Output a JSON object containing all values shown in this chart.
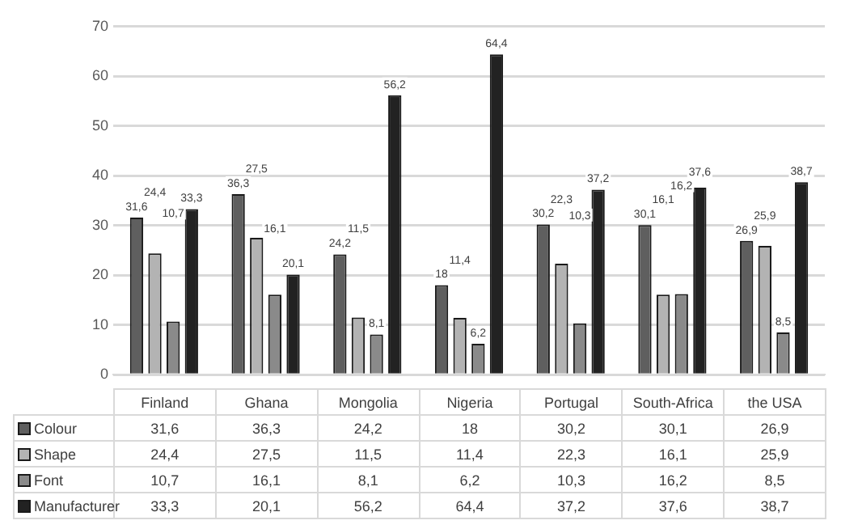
{
  "chart_data": {
    "type": "bar",
    "categories": [
      "Finland",
      "Ghana",
      "Mongolia",
      "Nigeria",
      "Portugal",
      "South-Africa",
      "the USA"
    ],
    "series": [
      {
        "name": "Colour",
        "color": "#5f5f5f",
        "values": [
          31.6,
          36.3,
          24.2,
          18,
          30.2,
          30.1,
          26.9
        ],
        "value_labels": [
          "31,6",
          "36,3",
          "24,2",
          "18",
          "30,2",
          "30,1",
          "26,9"
        ]
      },
      {
        "name": "Shape",
        "color": "#b3b3b3",
        "values": [
          24.4,
          27.5,
          11.5,
          11.4,
          22.3,
          16.1,
          25.9
        ],
        "value_labels": [
          "24,4",
          "27,5",
          "11,5",
          "11,4",
          "22,3",
          "16,1",
          "25,9"
        ]
      },
      {
        "name": "Font",
        "color": "#8a8a8a",
        "values": [
          10.7,
          16.1,
          8.1,
          6.2,
          10.3,
          16.2,
          8.5
        ],
        "value_labels": [
          "10,7",
          "16,1",
          "8,1",
          "6,2",
          "10,3",
          "16,2",
          "8,5"
        ]
      },
      {
        "name": "Manufacturer",
        "color": "#222222",
        "values": [
          33.3,
          20.1,
          56.2,
          64.4,
          37.2,
          37.6,
          38.7
        ],
        "value_labels": [
          "33,3",
          "20,1",
          "56,2",
          "64,4",
          "37,2",
          "37,6",
          "38,7"
        ]
      }
    ],
    "ylim": [
      0,
      70
    ],
    "yticks": [
      0,
      10,
      20,
      30,
      40,
      50,
      60,
      70
    ],
    "grid": "y",
    "legend": "bottom"
  }
}
